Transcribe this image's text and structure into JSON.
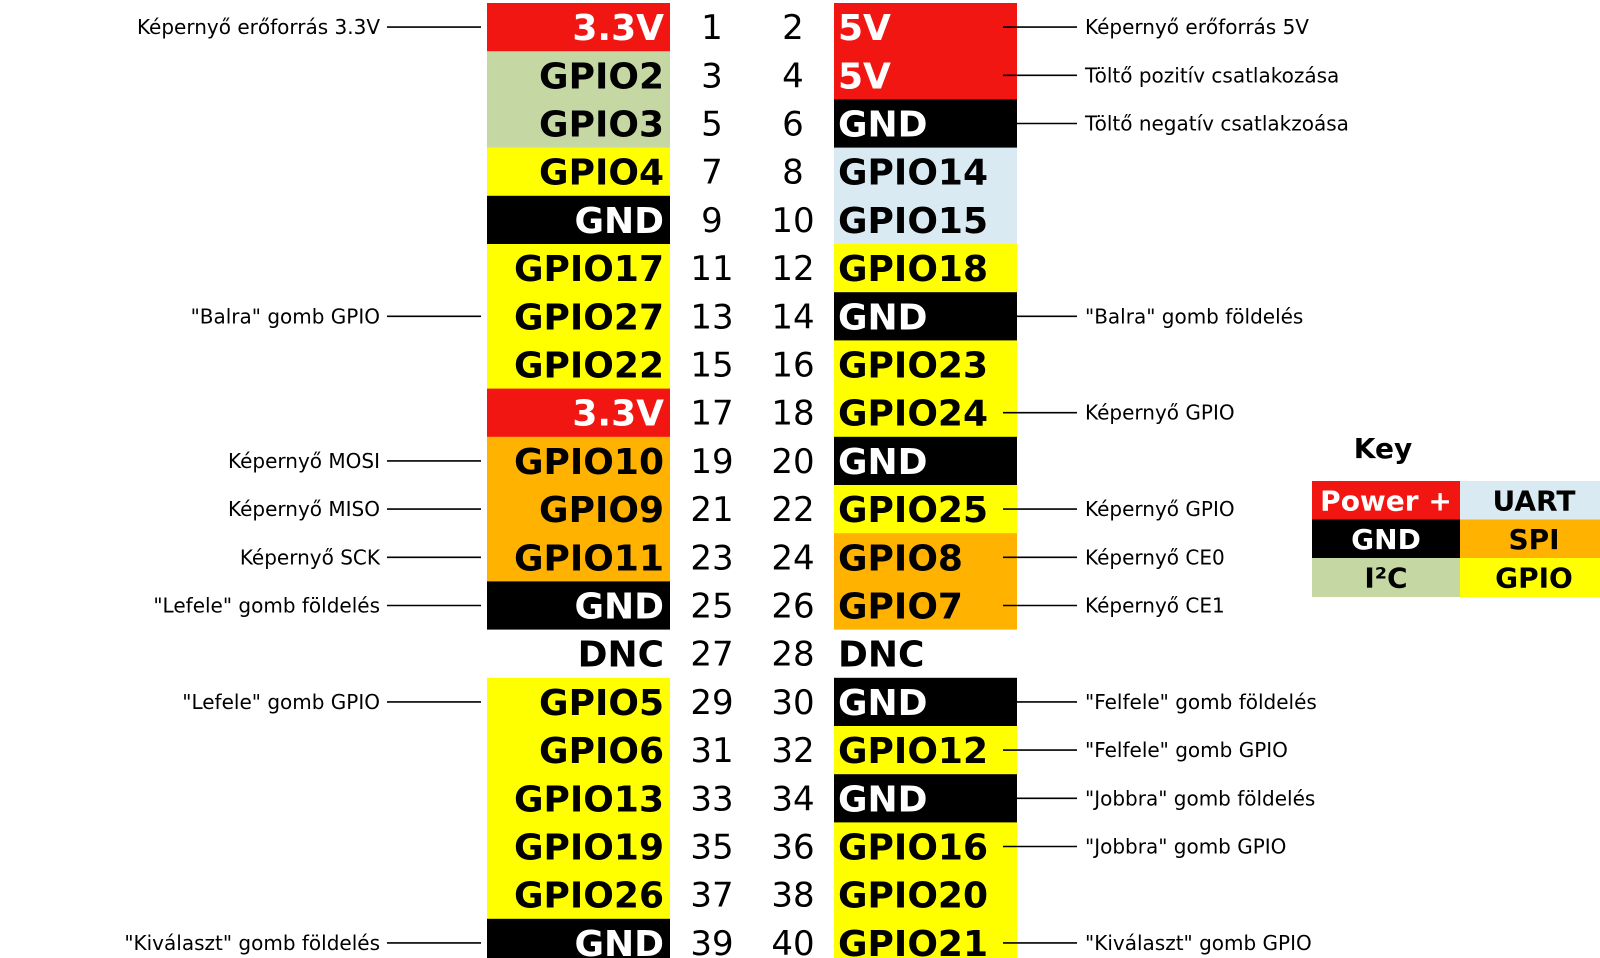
{
  "colors": {
    "power": "#f21612",
    "gnd": "#000000",
    "i2c": "#c5d7a3",
    "uart": "#daeaf2",
    "spi": "#ffb200",
    "gpio": "#ffff00",
    "dnc": "#ffffff"
  },
  "pins": [
    {
      "num": "1",
      "label": "3.3V",
      "type": "power"
    },
    {
      "num": "2",
      "label": "5V",
      "type": "power"
    },
    {
      "num": "3",
      "label": "GPIO2",
      "type": "i2c"
    },
    {
      "num": "4",
      "label": "5V",
      "type": "power"
    },
    {
      "num": "5",
      "label": "GPIO3",
      "type": "i2c"
    },
    {
      "num": "6",
      "label": "GND",
      "type": "gnd"
    },
    {
      "num": "7",
      "label": "GPIO4",
      "type": "gpio"
    },
    {
      "num": "8",
      "label": "GPIO14",
      "type": "uart"
    },
    {
      "num": "9",
      "label": "GND",
      "type": "gnd"
    },
    {
      "num": "10",
      "label": "GPIO15",
      "type": "uart"
    },
    {
      "num": "11",
      "label": "GPIO17",
      "type": "gpio"
    },
    {
      "num": "12",
      "label": "GPIO18",
      "type": "gpio"
    },
    {
      "num": "13",
      "label": "GPIO27",
      "type": "gpio"
    },
    {
      "num": "14",
      "label": "GND",
      "type": "gnd"
    },
    {
      "num": "15",
      "label": "GPIO22",
      "type": "gpio"
    },
    {
      "num": "16",
      "label": "GPIO23",
      "type": "gpio"
    },
    {
      "num": "17",
      "label": "3.3V",
      "type": "power"
    },
    {
      "num": "18",
      "label": "GPIO24",
      "type": "gpio"
    },
    {
      "num": "19",
      "label": "GPIO10",
      "type": "spi"
    },
    {
      "num": "20",
      "label": "GND",
      "type": "gnd"
    },
    {
      "num": "21",
      "label": "GPIO9",
      "type": "spi"
    },
    {
      "num": "22",
      "label": "GPIO25",
      "type": "gpio"
    },
    {
      "num": "23",
      "label": "GPIO11",
      "type": "spi"
    },
    {
      "num": "24",
      "label": "GPIO8",
      "type": "spi"
    },
    {
      "num": "25",
      "label": "GND",
      "type": "gnd"
    },
    {
      "num": "26",
      "label": "GPIO7",
      "type": "spi"
    },
    {
      "num": "27",
      "label": "DNC",
      "type": "dnc"
    },
    {
      "num": "28",
      "label": "DNC",
      "type": "dnc"
    },
    {
      "num": "29",
      "label": "GPIO5",
      "type": "gpio"
    },
    {
      "num": "30",
      "label": "GND",
      "type": "gnd"
    },
    {
      "num": "31",
      "label": "GPIO6",
      "type": "gpio"
    },
    {
      "num": "32",
      "label": "GPIO12",
      "type": "gpio"
    },
    {
      "num": "33",
      "label": "GPIO13",
      "type": "gpio"
    },
    {
      "num": "34",
      "label": "GND",
      "type": "gnd"
    },
    {
      "num": "35",
      "label": "GPIO19",
      "type": "gpio"
    },
    {
      "num": "36",
      "label": "GPIO16",
      "type": "gpio"
    },
    {
      "num": "37",
      "label": "GPIO26",
      "type": "gpio"
    },
    {
      "num": "38",
      "label": "GPIO20",
      "type": "gpio"
    },
    {
      "num": "39",
      "label": "GND",
      "type": "gnd"
    },
    {
      "num": "40",
      "label": "GPIO21",
      "type": "gpio"
    }
  ],
  "annotations": [
    {
      "pin": "1",
      "text": "Képernyő erőforrás 3.3V"
    },
    {
      "pin": "2",
      "text": "Képernyő erőforrás 5V"
    },
    {
      "pin": "4",
      "text": "Töltő pozitív csatlakozása"
    },
    {
      "pin": "6",
      "text": "Töltő negatív csatlakzoása"
    },
    {
      "pin": "13",
      "text": "\"Balra\" gomb GPIO"
    },
    {
      "pin": "14",
      "text": "\"Balra\" gomb földelés"
    },
    {
      "pin": "18",
      "text": "Képernyő GPIO"
    },
    {
      "pin": "19",
      "text": "Képernyő MOSI"
    },
    {
      "pin": "21",
      "text": "Képernyő MISO"
    },
    {
      "pin": "22",
      "text": "Képernyő GPIO"
    },
    {
      "pin": "23",
      "text": "Képernyő SCK"
    },
    {
      "pin": "24",
      "text": "Képernyő CE0"
    },
    {
      "pin": "25",
      "text": "\"Lefele\" gomb földelés"
    },
    {
      "pin": "26",
      "text": "Képernyő CE1"
    },
    {
      "pin": "29",
      "text": "\"Lefele\" gomb GPIO"
    },
    {
      "pin": "30",
      "text": "\"Felfele\" gomb földelés"
    },
    {
      "pin": "32",
      "text": "\"Felfele\" gomb GPIO"
    },
    {
      "pin": "34",
      "text": "\"Jobbra\" gomb földelés"
    },
    {
      "pin": "36",
      "text": "\"Jobbra\" gomb GPIO"
    },
    {
      "pin": "39",
      "text": "\"Kiválaszt\" gomb földelés"
    },
    {
      "pin": "40",
      "text": "\"Kiválaszt\" gomb GPIO"
    }
  ],
  "key": {
    "title": "Key",
    "items": [
      {
        "label": "Power +",
        "type": "power"
      },
      {
        "label": "UART",
        "type": "uart"
      },
      {
        "label": "GND",
        "type": "gnd"
      },
      {
        "label": "SPI",
        "type": "spi"
      },
      {
        "label": "I²C",
        "type": "i2c"
      },
      {
        "label": "GPIO",
        "type": "gpio"
      }
    ]
  }
}
